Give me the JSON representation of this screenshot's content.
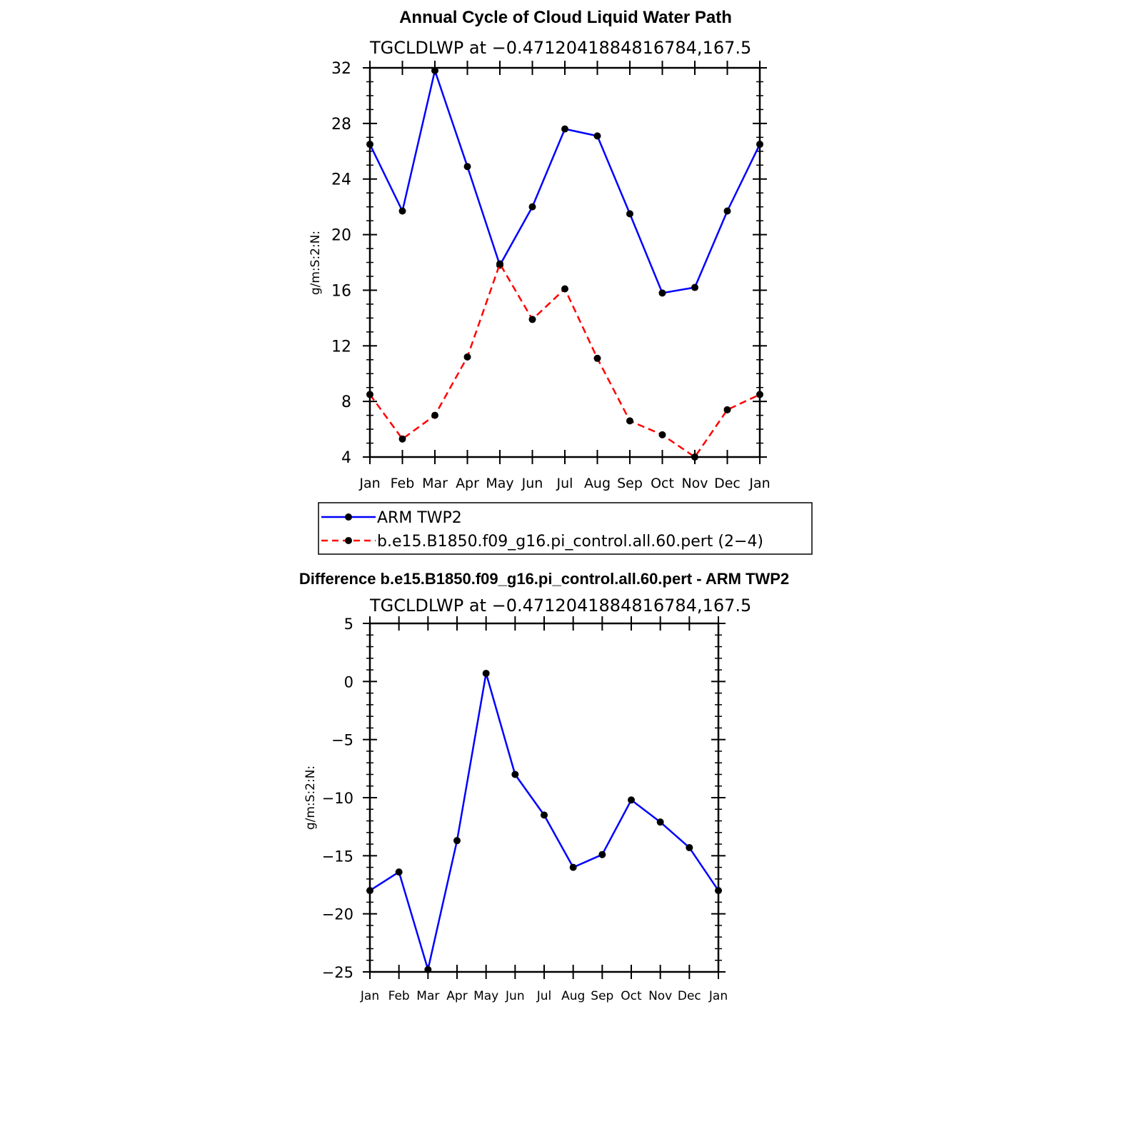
{
  "chart_data": [
    {
      "type": "line",
      "title": "Annual Cycle of Cloud Liquid Water Path",
      "subtitle": "TGCLDLWP at −0.4712041884816784,167.5",
      "ylabel": "g/m:S:2:N:",
      "categories": [
        "Jan",
        "Feb",
        "Mar",
        "Apr",
        "May",
        "Jun",
        "Jul",
        "Aug",
        "Sep",
        "Oct",
        "Nov",
        "Dec",
        "Jan"
      ],
      "ylim": [
        4,
        32
      ],
      "yticks": [
        4,
        8,
        12,
        16,
        20,
        24,
        28,
        32
      ],
      "ytick_labels": [
        "4",
        "8",
        "12",
        "16",
        "20",
        "24",
        "28",
        "32"
      ],
      "series": [
        {
          "name": "ARM TWP2",
          "color": "#0000ff",
          "dash": "solid",
          "values": [
            26.5,
            21.7,
            31.8,
            24.9,
            17.8,
            22.0,
            27.6,
            27.1,
            21.5,
            15.8,
            16.2,
            21.7,
            26.5
          ]
        },
        {
          "name": "b.e15.B1850.f09_g16.pi_control.all.60.pert (2−4)",
          "color": "#ff0000",
          "dash": "dashed",
          "values": [
            8.5,
            5.3,
            7.0,
            11.2,
            17.9,
            13.9,
            16.1,
            11.1,
            6.6,
            5.6,
            4.0,
            7.4,
            8.5
          ]
        }
      ],
      "legend": "below"
    },
    {
      "type": "line",
      "title": "Difference b.e15.B1850.f09_g16.pi_control.all.60.pert - ARM TWP2",
      "subtitle": "TGCLDLWP at −0.4712041884816784,167.5",
      "ylabel": "g/m:S:2:N:",
      "categories": [
        "Jan",
        "Feb",
        "Mar",
        "Apr",
        "May",
        "Jun",
        "Jul",
        "Aug",
        "Sep",
        "Oct",
        "Nov",
        "Dec",
        "Jan"
      ],
      "ylim": [
        -25,
        5
      ],
      "yticks": [
        -25,
        -20,
        -15,
        -10,
        -5,
        0,
        5
      ],
      "ytick_labels": [
        "−25",
        "−20",
        "−15",
        "−10",
        "−5",
        "0",
        "5"
      ],
      "series": [
        {
          "name": "Difference",
          "color": "#0000ff",
          "dash": "solid",
          "values": [
            -18.0,
            -16.4,
            -24.8,
            -13.7,
            0.7,
            -8.0,
            -11.5,
            -16.0,
            -14.9,
            -10.2,
            -12.1,
            -14.3,
            -18.0
          ]
        }
      ]
    }
  ]
}
